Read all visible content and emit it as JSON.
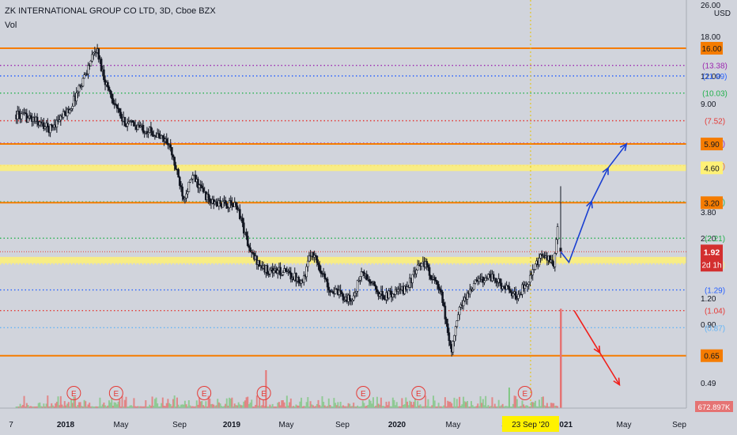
{
  "header": {
    "title": "ZK INTERNATIONAL GROUP CO LTD, 3D, Cboe BZX",
    "indicator": "Vol"
  },
  "currency": "USD",
  "colors": {
    "background": "#d1d4dc",
    "candle": "#131722",
    "orange": "#f57c00",
    "yellow": "#fff176",
    "blue_arrow": "#1a3fd1",
    "red_arrow": "#f0201c",
    "green_dotted": "#22b14c",
    "purple_dotted": "#9c27b0",
    "blue_dotted": "#2962ff",
    "red_dotted": "#e53935",
    "light_blue_dotted": "#64b5f6"
  },
  "chart_data": {
    "type": "candlestick",
    "title": "ZK INTERNATIONAL GROUP CO LTD, 3D, Cboe BZX",
    "scale": "log",
    "ylim": [
      0.4,
      26.0
    ],
    "y_tick_labels": [
      "26.00",
      "18.00",
      "12.00",
      "9.00",
      "3.80",
      "2.20",
      "1.20",
      "0.90",
      "0.49"
    ],
    "x_tick_labels": [
      "7",
      "2018",
      "May",
      "Sep",
      "2019",
      "May",
      "Sep",
      "2020",
      "May",
      "Sep",
      "2021",
      "May",
      "Sep"
    ],
    "date_range": [
      "2017-07",
      "2021-09"
    ],
    "horizontal_levels": [
      {
        "value": 16.0,
        "label": "16.00",
        "style": "solid",
        "color": "orange"
      },
      {
        "value": 13.38,
        "label": "(13.38)",
        "style": "dotted",
        "color": "purple"
      },
      {
        "value": 11.99,
        "label": "(11.99)",
        "style": "dotted",
        "color": "blue"
      },
      {
        "value": 10.03,
        "label": "(10.03)",
        "style": "dotted",
        "color": "green"
      },
      {
        "value": 7.52,
        "label": "(7.52)",
        "style": "dotted",
        "color": "red"
      },
      {
        "value": 5.95,
        "label": "(5.95)",
        "style": "dotted",
        "color": "purple"
      },
      {
        "value": 5.9,
        "label": "5.90",
        "style": "solid",
        "color": "orange"
      },
      {
        "value": 4.71,
        "label": "(4.71)",
        "style": "dotted",
        "color": "orange"
      },
      {
        "value": 4.6,
        "label": "4.60",
        "style": "band",
        "color": "yellow"
      },
      {
        "value": 3.23,
        "label": "(3.23)",
        "style": "dotted",
        "color": "green"
      },
      {
        "value": 3.2,
        "label": "3.20",
        "style": "solid",
        "color": "orange"
      },
      {
        "value": 2.21,
        "label": "(2.21)",
        "style": "dotted",
        "color": "green"
      },
      {
        "value": 1.69,
        "label": "(1.69)",
        "style": "dotted",
        "color": "yellow"
      },
      {
        "value": 1.76,
        "label": "1.76",
        "style": "band",
        "color": "yellow"
      },
      {
        "value": 1.29,
        "label": "(1.29)",
        "style": "dotted",
        "color": "blue"
      },
      {
        "value": 1.04,
        "label": "(1.04)",
        "style": "dotted",
        "color": "red"
      },
      {
        "value": 0.87,
        "label": "(0.87)",
        "style": "dotted",
        "color": "lightblue"
      },
      {
        "value": 0.65,
        "label": "0.65",
        "style": "solid",
        "color": "orange"
      }
    ],
    "price_anchors": [
      [
        "2017-07-01",
        8.0
      ],
      [
        "2017-08-10",
        7.6
      ],
      [
        "2017-09-15",
        6.9
      ],
      [
        "2017-11-01",
        8.5
      ],
      [
        "2018-01-01",
        16.0
      ],
      [
        "2018-01-20",
        11.5
      ],
      [
        "2018-03-01",
        7.5
      ],
      [
        "2018-05-01",
        6.8
      ],
      [
        "2018-06-15",
        6.0
      ],
      [
        "2018-07-20",
        3.4
      ],
      [
        "2018-08-10",
        4.2
      ],
      [
        "2018-09-20",
        3.2
      ],
      [
        "2018-11-20",
        3.1
      ],
      [
        "2018-12-20",
        1.9
      ],
      [
        "2019-01-20",
        1.6
      ],
      [
        "2019-03-10",
        1.55
      ],
      [
        "2019-04-20",
        1.42
      ],
      [
        "2019-05-10",
        1.95
      ],
      [
        "2019-06-20",
        1.3
      ],
      [
        "2019-08-10",
        1.15
      ],
      [
        "2019-09-01",
        1.55
      ],
      [
        "2019-10-20",
        1.2
      ],
      [
        "2019-12-10",
        1.3
      ],
      [
        "2020-01-20",
        1.75
      ],
      [
        "2020-03-01",
        1.25
      ],
      [
        "2020-03-25",
        0.68
      ],
      [
        "2020-04-15",
        1.1
      ],
      [
        "2020-05-20",
        1.4
      ],
      [
        "2020-06-20",
        1.5
      ],
      [
        "2020-07-20",
        1.35
      ],
      [
        "2020-08-20",
        1.2
      ],
      [
        "2020-09-10",
        1.35
      ],
      [
        "2020-10-20",
        1.85
      ],
      [
        "2020-11-15",
        1.7
      ],
      [
        "2020-11-25",
        2.5
      ]
    ],
    "last_candle": {
      "date": "2020-12-01",
      "open": 2.0,
      "high": 3.8,
      "low": 1.8,
      "close": 1.92
    },
    "current_price": {
      "value": 1.92,
      "label": "1.92",
      "countdown": "2d 1h"
    },
    "volume_label": "672.897K",
    "earnings_markers": [
      "2017-11-10",
      "2018-02-15",
      "2018-09-05",
      "2019-01-20",
      "2019-09-05",
      "2020-01-10",
      "2020-09-10"
    ],
    "earnings_marker_text": "E",
    "crosshair_date_label": "23 Sep '20",
    "projection_up": [
      [
        "2020-12-01",
        1.92
      ],
      [
        "2020-12-20",
        1.72
      ],
      [
        "2021-02-10",
        3.25
      ],
      [
        "2021-03-20",
        4.6
      ],
      [
        "2021-05-01",
        5.9
      ]
    ],
    "projection_down": [
      [
        "2021-01-01",
        1.04
      ],
      [
        "2021-03-01",
        0.67
      ],
      [
        "2021-04-15",
        0.48
      ]
    ]
  }
}
